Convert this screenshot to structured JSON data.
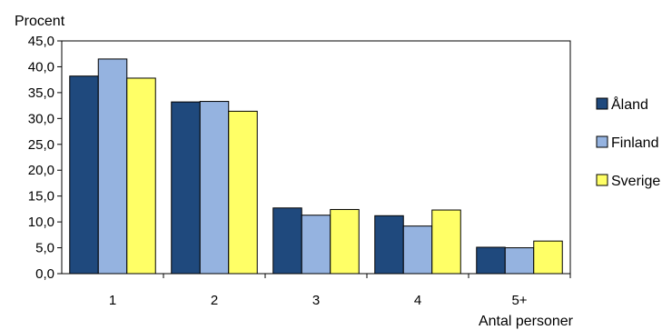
{
  "chart_data": {
    "type": "bar",
    "title": "",
    "ylabel": "Procent",
    "xlabel": "Antal personer",
    "categories": [
      "1",
      "2",
      "3",
      "4",
      "5+"
    ],
    "series": [
      {
        "name": "Åland",
        "color": "#1f497d",
        "values": [
          38.2,
          33.2,
          12.7,
          11.2,
          5.1
        ]
      },
      {
        "name": "Finland",
        "color": "#95b3e0",
        "values": [
          41.5,
          33.3,
          11.3,
          9.2,
          5.0
        ]
      },
      {
        "name": "Sverige",
        "color": "#ffff66",
        "values": [
          37.8,
          31.4,
          12.4,
          12.3,
          6.3
        ]
      }
    ],
    "ylim": [
      0,
      45
    ],
    "yticks": [
      "0,0",
      "5,0",
      "10,0",
      "15,0",
      "20,0",
      "25,0",
      "30,0",
      "35,0",
      "40,0",
      "45,0"
    ],
    "grid": false,
    "legend_position": "right"
  }
}
